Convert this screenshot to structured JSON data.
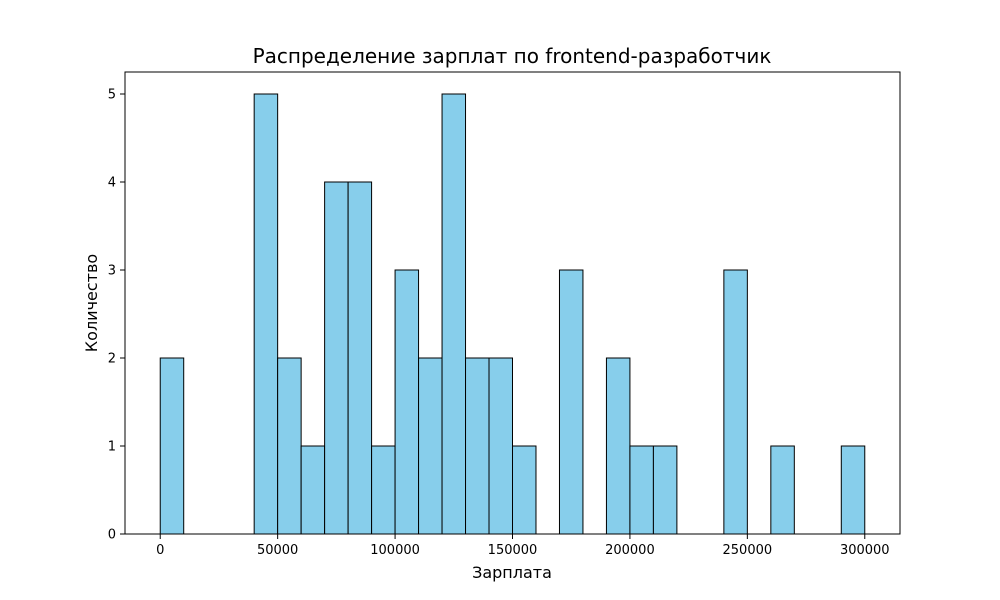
{
  "chart_data": {
    "type": "bar",
    "title": "Распределение зарплат по frontend-разработчик",
    "xlabel": "Зарплата",
    "ylabel": "Количество",
    "xlim": [
      -15000,
      315000
    ],
    "ylim": [
      0,
      5.25
    ],
    "xticks": [
      0,
      50000,
      100000,
      150000,
      200000,
      250000,
      300000
    ],
    "xtick_labels": [
      "0",
      "50000",
      "100000",
      "150000",
      "200000",
      "250000",
      "300000"
    ],
    "yticks": [
      0,
      1,
      2,
      3,
      4,
      5
    ],
    "ytick_labels": [
      "0",
      "1",
      "2",
      "3",
      "4",
      "5"
    ],
    "bin_edges": [
      0,
      10000,
      20000,
      30000,
      40000,
      50000,
      60000,
      70000,
      80000,
      90000,
      100000,
      110000,
      120000,
      130000,
      140000,
      150000,
      160000,
      170000,
      180000,
      190000,
      200000,
      210000,
      220000,
      230000,
      240000,
      250000,
      260000,
      270000,
      280000,
      290000,
      300000
    ],
    "values": [
      2,
      0,
      0,
      0,
      5,
      2,
      1,
      4,
      4,
      1,
      3,
      2,
      5,
      2,
      2,
      1,
      0,
      3,
      0,
      2,
      1,
      1,
      0,
      0,
      3,
      0,
      1,
      0,
      0,
      1
    ],
    "bar_color": "#87CEEB",
    "edge_color": "#000000",
    "grid": false,
    "legend": false
  }
}
